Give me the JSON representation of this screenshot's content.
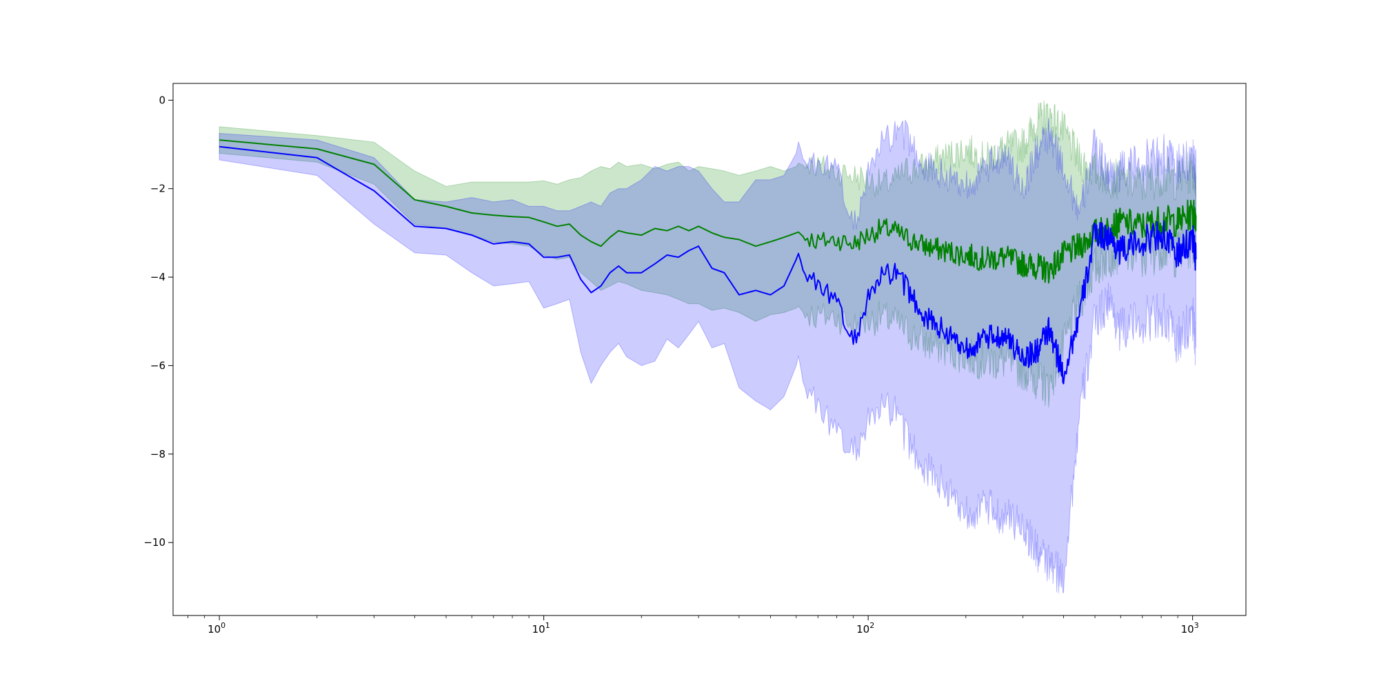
{
  "chart_data": {
    "type": "line",
    "title": "",
    "xlabel": "",
    "ylabel": "",
    "xscale": "log",
    "xlim": [
      0.72,
      1460
    ],
    "ylim": [
      -11.65,
      0.38
    ],
    "grid": false,
    "legend": "none",
    "x_ticks": [
      {
        "value": 1,
        "base": "10",
        "exp": "0"
      },
      {
        "value": 10,
        "base": "10",
        "exp": "1"
      },
      {
        "value": 100,
        "base": "10",
        "exp": "2"
      },
      {
        "value": 1000,
        "base": "10",
        "exp": "3"
      }
    ],
    "y_ticks": [
      {
        "value": 0,
        "label": "0"
      },
      {
        "value": -2,
        "label": "−2"
      },
      {
        "value": -4,
        "label": "−4"
      },
      {
        "value": -6,
        "label": "−6"
      },
      {
        "value": -8,
        "label": "−8"
      },
      {
        "value": -10,
        "label": "−10"
      }
    ],
    "series": [
      {
        "color": "#008000",
        "band_color": "#008000",
        "band_opacity": 0.2,
        "x": [
          1,
          2,
          3,
          4,
          5,
          6,
          7,
          8,
          9,
          10,
          11,
          12,
          13,
          14,
          15,
          16,
          17,
          18,
          20,
          22,
          24,
          26,
          28,
          30,
          33,
          36,
          40,
          45,
          50,
          55,
          60,
          65,
          70,
          80,
          90,
          100,
          110,
          120,
          130,
          150,
          170,
          200,
          230,
          260,
          300,
          330,
          360,
          400,
          450,
          500,
          550,
          600,
          700,
          800,
          900,
          1000,
          1024
        ],
        "y": [
          -0.9,
          -1.1,
          -1.45,
          -2.25,
          -2.4,
          -2.55,
          -2.6,
          -2.63,
          -2.65,
          -2.75,
          -2.85,
          -2.8,
          -3.05,
          -3.2,
          -3.3,
          -3.1,
          -2.95,
          -3.0,
          -3.05,
          -2.9,
          -2.95,
          -2.85,
          -2.95,
          -2.85,
          -3.0,
          -3.1,
          -3.15,
          -3.3,
          -3.2,
          -3.1,
          -3.0,
          -3.1,
          -3.2,
          -3.15,
          -3.25,
          -3.05,
          -2.9,
          -2.95,
          -3.1,
          -3.3,
          -3.4,
          -3.5,
          -3.6,
          -3.55,
          -3.7,
          -3.75,
          -3.85,
          -3.5,
          -3.3,
          -3.0,
          -2.9,
          -2.75,
          -2.85,
          -2.7,
          -2.75,
          -2.55,
          -2.6
        ],
        "lower": [
          -1.2,
          -1.4,
          -1.9,
          -2.8,
          -2.9,
          -3.05,
          -3.2,
          -3.25,
          -3.3,
          -3.5,
          -3.6,
          -3.55,
          -3.9,
          -4.1,
          -4.3,
          -4.2,
          -4.1,
          -4.15,
          -4.3,
          -4.35,
          -4.4,
          -4.5,
          -4.6,
          -4.6,
          -4.75,
          -4.7,
          -4.8,
          -5.0,
          -4.85,
          -4.8,
          -4.7,
          -4.8,
          -4.9,
          -4.9,
          -5.1,
          -5.0,
          -4.9,
          -5.0,
          -5.2,
          -5.5,
          -5.6,
          -5.8,
          -5.9,
          -5.9,
          -6.1,
          -6.3,
          -6.5,
          -5.6,
          -4.5,
          -3.8,
          -3.5,
          -3.4,
          -3.6,
          -3.3,
          -3.5,
          -3.2,
          -3.3
        ],
        "upper": [
          -0.6,
          -0.8,
          -0.95,
          -1.6,
          -1.95,
          -1.85,
          -1.85,
          -1.85,
          -1.85,
          -1.82,
          -1.9,
          -1.8,
          -1.75,
          -1.6,
          -1.5,
          -1.55,
          -1.4,
          -1.5,
          -1.45,
          -1.55,
          -1.45,
          -1.4,
          -1.6,
          -1.5,
          -1.55,
          -1.6,
          -1.7,
          -1.6,
          -1.5,
          -1.6,
          -1.5,
          -1.4,
          -1.5,
          -1.6,
          -1.7,
          -1.8,
          -1.9,
          -1.85,
          -1.6,
          -1.5,
          -1.3,
          -1.1,
          -1.35,
          -1.1,
          -1.0,
          -0.5,
          -0.3,
          -0.7,
          -1.4,
          -1.6,
          -1.75,
          -1.8,
          -1.9,
          -1.7,
          -1.8,
          -1.6,
          -1.7
        ]
      },
      {
        "color": "#0000ff",
        "band_color": "#0000ff",
        "band_opacity": 0.2,
        "x": [
          1,
          2,
          3,
          4,
          5,
          6,
          7,
          8,
          9,
          10,
          11,
          12,
          13,
          14,
          15,
          16,
          17,
          18,
          20,
          22,
          24,
          26,
          28,
          30,
          33,
          36,
          40,
          45,
          50,
          55,
          60,
          65,
          70,
          80,
          90,
          100,
          110,
          120,
          130,
          150,
          170,
          200,
          230,
          260,
          300,
          330,
          360,
          400,
          450,
          500,
          550,
          600,
          700,
          800,
          900,
          1000,
          1024
        ],
        "y": [
          -1.05,
          -1.3,
          -2.05,
          -2.85,
          -2.9,
          -3.05,
          -3.25,
          -3.2,
          -3.25,
          -3.55,
          -3.55,
          -3.5,
          -4.05,
          -4.35,
          -4.2,
          -3.9,
          -3.75,
          -3.9,
          -3.9,
          -3.7,
          -3.5,
          -3.55,
          -3.4,
          -3.3,
          -3.8,
          -3.9,
          -4.4,
          -4.3,
          -4.4,
          -4.2,
          -3.6,
          -4.0,
          -4.1,
          -4.6,
          -5.5,
          -4.5,
          -4.0,
          -3.9,
          -4.2,
          -4.9,
          -5.2,
          -5.6,
          -5.4,
          -5.3,
          -5.8,
          -5.7,
          -5.2,
          -6.2,
          -4.8,
          -3.0,
          -3.1,
          -3.4,
          -3.2,
          -3.0,
          -3.5,
          -3.1,
          -3.6
        ],
        "lower": [
          -1.35,
          -1.7,
          -2.8,
          -3.45,
          -3.5,
          -3.9,
          -4.2,
          -4.15,
          -4.1,
          -4.7,
          -4.6,
          -4.5,
          -5.7,
          -6.4,
          -6.0,
          -5.7,
          -5.5,
          -5.8,
          -6.0,
          -5.9,
          -5.4,
          -5.6,
          -5.3,
          -5.0,
          -5.6,
          -5.5,
          -6.5,
          -6.8,
          -7.0,
          -6.7,
          -6.0,
          -6.6,
          -6.8,
          -7.6,
          -8.0,
          -7.3,
          -7.0,
          -7.0,
          -7.6,
          -8.3,
          -8.7,
          -9.3,
          -9.2,
          -9.4,
          -9.6,
          -10.2,
          -10.5,
          -10.8,
          -7.0,
          -5.0,
          -4.5,
          -5.2,
          -5.0,
          -4.8,
          -5.5,
          -4.9,
          -5.6
        ],
        "upper": [
          -0.75,
          -0.9,
          -1.3,
          -2.25,
          -2.3,
          -2.2,
          -2.3,
          -2.25,
          -2.4,
          -2.4,
          -2.5,
          -2.5,
          -2.4,
          -2.3,
          -2.4,
          -2.1,
          -2.0,
          -2.0,
          -1.8,
          -1.5,
          -1.6,
          -1.5,
          -1.5,
          -1.6,
          -2.0,
          -2.3,
          -2.3,
          -1.8,
          -1.8,
          -1.7,
          -1.2,
          -1.4,
          -1.4,
          -1.6,
          -2.9,
          -1.7,
          -1.0,
          -0.8,
          -0.8,
          -1.5,
          -1.7,
          -1.9,
          -1.6,
          -1.2,
          -2.0,
          -1.2,
          -0.8,
          -1.5,
          -2.6,
          -1.0,
          -1.7,
          -1.6,
          -1.4,
          -1.2,
          -1.5,
          -1.3,
          -1.6
        ]
      }
    ]
  }
}
